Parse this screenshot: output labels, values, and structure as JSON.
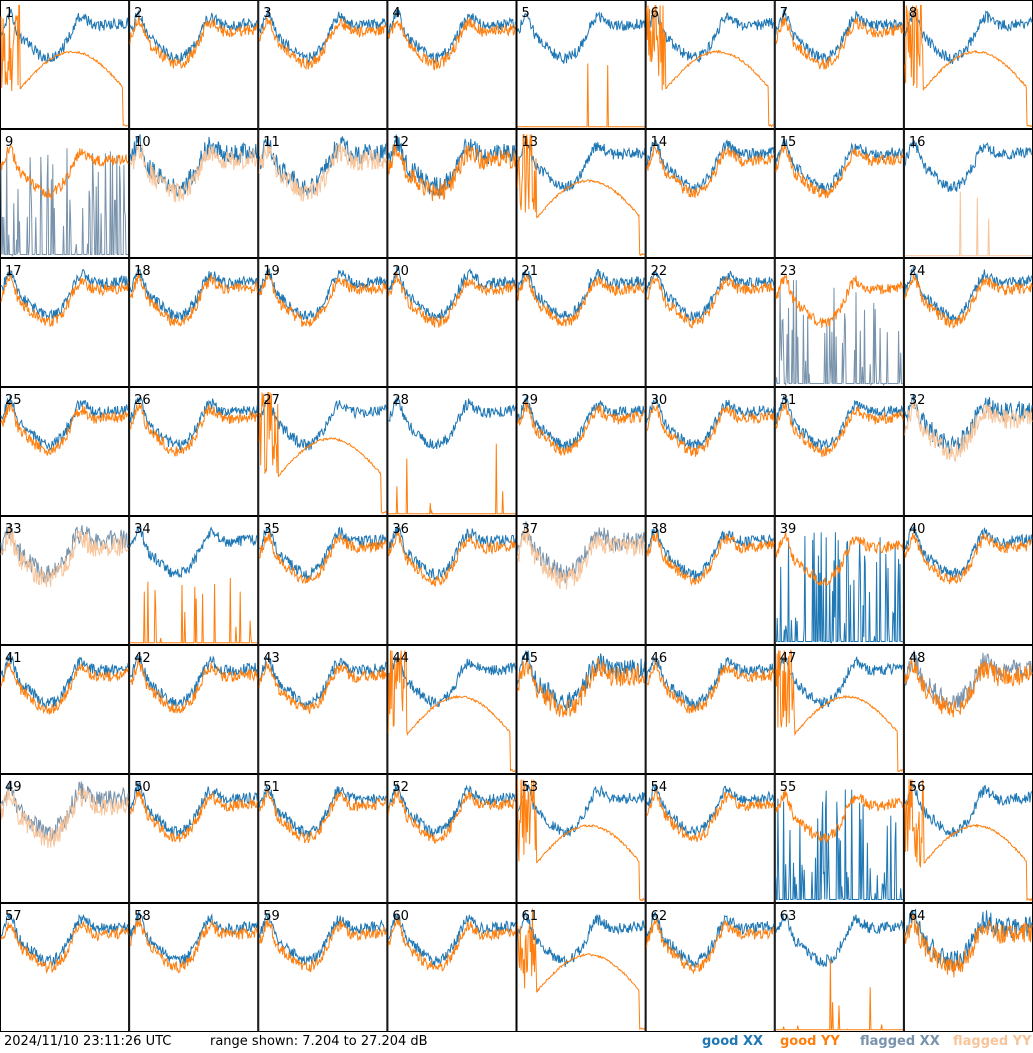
{
  "footer": {
    "timestamp": "2024/11/10 23:11:26 UTC",
    "range": "range shown: 7.204 to 27.204 dB"
  },
  "legend": [
    {
      "label": "good XX",
      "color": "#1f77b4"
    },
    {
      "label": "good YY",
      "color": "#ff7f0e"
    },
    {
      "label": "flagged XX",
      "color": "#7893ab"
    },
    {
      "label": "flagged YY",
      "color": "#f8c49a"
    }
  ],
  "chart_data": {
    "type": "line",
    "panels": [
      1,
      2,
      3,
      4,
      5,
      6,
      7,
      8,
      9,
      10,
      11,
      12,
      13,
      14,
      15,
      16,
      17,
      18,
      19,
      20,
      21,
      22,
      23,
      24,
      25,
      26,
      27,
      28,
      29,
      30,
      31,
      32,
      33,
      34,
      35,
      36,
      37,
      38,
      39,
      40,
      41,
      42,
      43,
      44,
      45,
      46,
      47,
      48,
      49,
      50,
      51,
      52,
      53,
      54,
      55,
      56,
      57,
      58,
      59,
      60,
      61,
      62,
      63,
      64
    ],
    "ylim": [
      7.204,
      27.204
    ],
    "series": [
      "XX",
      "YY"
    ],
    "panel_status": {
      "good": [
        1,
        2,
        3,
        4,
        5,
        6,
        7,
        8,
        12,
        13,
        14,
        15,
        17,
        18,
        19,
        20,
        21,
        22,
        24,
        25,
        26,
        27,
        28,
        29,
        30,
        31,
        34,
        35,
        36,
        38,
        39,
        40,
        41,
        42,
        43,
        44,
        45,
        46,
        47,
        50,
        51,
        52,
        53,
        54,
        55,
        56,
        57,
        58,
        59,
        60,
        61,
        62,
        63,
        64
      ],
      "flagged_xx": [
        9,
        23,
        48
      ],
      "flagged_yy": [
        10,
        11,
        16,
        32
      ],
      "flagged_both": [
        33,
        37,
        49
      ]
    },
    "shape": {
      "typical": [
        2,
        3,
        4,
        7,
        14,
        15,
        17,
        18,
        19,
        20,
        21,
        22,
        24,
        25,
        26,
        29,
        30,
        31,
        35,
        36,
        38,
        40,
        41,
        42,
        43,
        46,
        50,
        51,
        52,
        54,
        57,
        58,
        59,
        60,
        62
      ],
      "bump": [
        1,
        6,
        8,
        13,
        27,
        44,
        47,
        53,
        56,
        61
      ],
      "spikes": [
        5,
        16,
        28,
        34,
        63
      ],
      "dropout": [
        9,
        23,
        39,
        55
      ],
      "noisy": [
        10,
        11,
        12,
        32,
        33,
        37,
        45,
        48,
        49,
        64
      ]
    }
  }
}
